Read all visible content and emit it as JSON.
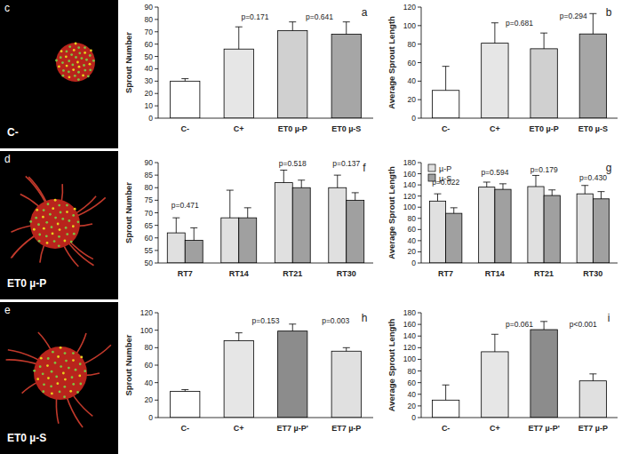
{
  "images": [
    {
      "letter": "c",
      "label": "C-"
    },
    {
      "letter": "d",
      "label": "ET0 µ-P"
    },
    {
      "letter": "e",
      "label": "ET0 µ-S"
    }
  ],
  "chart_data": [
    {
      "type": "bar",
      "title": "a",
      "ylabel": "Sprout Number",
      "categories": [
        "C-",
        "C+",
        "ET0 µ-P",
        "ET0 µ-S"
      ],
      "values": [
        30,
        56,
        71,
        68
      ],
      "errors": [
        2,
        18,
        7,
        10
      ],
      "colors": [
        "#ffffff",
        "#e6e6e6",
        "#d0d0d0",
        "#a6a6a6"
      ],
      "ylim": [
        0,
        90
      ],
      "yticks": [
        0,
        10,
        20,
        30,
        40,
        50,
        60,
        70,
        80,
        90
      ],
      "annotations": [
        {
          "text": "p=0.171",
          "x": 1.3,
          "y": 80
        },
        {
          "text": "p=0.641",
          "x": 2.5,
          "y": 80
        }
      ]
    },
    {
      "type": "bar",
      "title": "b",
      "ylabel": "Average Sprout Length",
      "categories": [
        "C-",
        "C+",
        "ET0 µ-P",
        "ET0 µ-S"
      ],
      "values": [
        30,
        81,
        75,
        91
      ],
      "errors": [
        26,
        22,
        17,
        22
      ],
      "colors": [
        "#ffffff",
        "#e6e6e6",
        "#d0d0d0",
        "#a6a6a6"
      ],
      "ylim": [
        0,
        120
      ],
      "yticks": [
        0,
        20,
        40,
        60,
        80,
        100,
        120
      ],
      "annotations": [
        {
          "text": "p=0.681",
          "x": 1.5,
          "y": 100
        },
        {
          "text": "p=0.294",
          "x": 2.6,
          "y": 108
        }
      ]
    },
    {
      "type": "bar",
      "title": "f",
      "ylabel": "Sprout Number",
      "categories": [
        "RT7",
        "RT14",
        "RT21",
        "RT30"
      ],
      "series": [
        {
          "name": "µ-P",
          "color": "#e0e0e0",
          "values": [
            62,
            68,
            82,
            80
          ],
          "errors": [
            6,
            11,
            5,
            5
          ]
        },
        {
          "name": "µ-S",
          "color": "#a0a0a0",
          "values": [
            59,
            68,
            80,
            75
          ],
          "errors": [
            5,
            4,
            3,
            3
          ]
        }
      ],
      "ylim": [
        50,
        90
      ],
      "yticks": [
        50,
        55,
        60,
        65,
        70,
        75,
        80,
        85,
        90
      ],
      "annotations": [
        {
          "text": "p=0.471",
          "x": 0,
          "y": 72
        },
        {
          "text": "p=0.518",
          "x": 2,
          "y": 88.5
        },
        {
          "text": "p=0.137",
          "x": 3,
          "y": 88.5
        }
      ]
    },
    {
      "type": "bar",
      "title": "g",
      "ylabel": "Average Sprout Length",
      "legend": "upper left",
      "categories": [
        "RT7",
        "RT14",
        "RT21",
        "RT30"
      ],
      "series": [
        {
          "name": "µ-P",
          "color": "#e0e0e0",
          "values": [
            111,
            136,
            137,
            124
          ],
          "errors": [
            13,
            9,
            20,
            15
          ]
        },
        {
          "name": "µ-S",
          "color": "#a0a0a0",
          "values": [
            89,
            132,
            121,
            115
          ],
          "errors": [
            10,
            10,
            10,
            13
          ]
        }
      ],
      "ylim": [
        0,
        180
      ],
      "yticks": [
        0,
        20,
        40,
        60,
        80,
        100,
        120,
        140,
        160,
        180
      ],
      "annotations": [
        {
          "text": "p=0.022",
          "x": 0,
          "y": 140
        },
        {
          "text": "p=0.594",
          "x": 1,
          "y": 158
        },
        {
          "text": "p=0.179",
          "x": 2,
          "y": 162
        },
        {
          "text": "p=0.430",
          "x": 3,
          "y": 148
        }
      ]
    },
    {
      "type": "bar",
      "title": "h",
      "ylabel": "Sprout Number",
      "categories": [
        "C-",
        "C+",
        "ET7 µ-P'",
        "ET7 µ-P"
      ],
      "values": [
        30,
        88,
        99,
        76
      ],
      "errors": [
        2,
        9,
        8,
        4
      ],
      "colors": [
        "#ffffff",
        "#e6e6e6",
        "#8c8c8c",
        "#e0e0e0"
      ],
      "ylim": [
        0,
        120
      ],
      "yticks": [
        0,
        20,
        40,
        60,
        80,
        100,
        120
      ],
      "annotations": [
        {
          "text": "p=0.153",
          "x": 1.5,
          "y": 108
        },
        {
          "text": "p=0.003",
          "x": 2.8,
          "y": 108
        }
      ]
    },
    {
      "type": "bar",
      "title": "i",
      "ylabel": "Average Sprout Length",
      "categories": [
        "C-",
        "C+",
        "ET7 µ-P'",
        "ET7 µ-P"
      ],
      "values": [
        30,
        113,
        151,
        63
      ],
      "errors": [
        26,
        30,
        14,
        12
      ],
      "colors": [
        "#ffffff",
        "#e6e6e6",
        "#8c8c8c",
        "#e0e0e0"
      ],
      "ylim": [
        0,
        180
      ],
      "yticks": [
        0,
        20,
        40,
        60,
        80,
        100,
        120,
        140,
        160,
        180
      ],
      "annotations": [
        {
          "text": "p=0.061",
          "x": 1.5,
          "y": 155
        },
        {
          "text": "p<0.001",
          "x": 2.8,
          "y": 155
        }
      ]
    }
  ]
}
